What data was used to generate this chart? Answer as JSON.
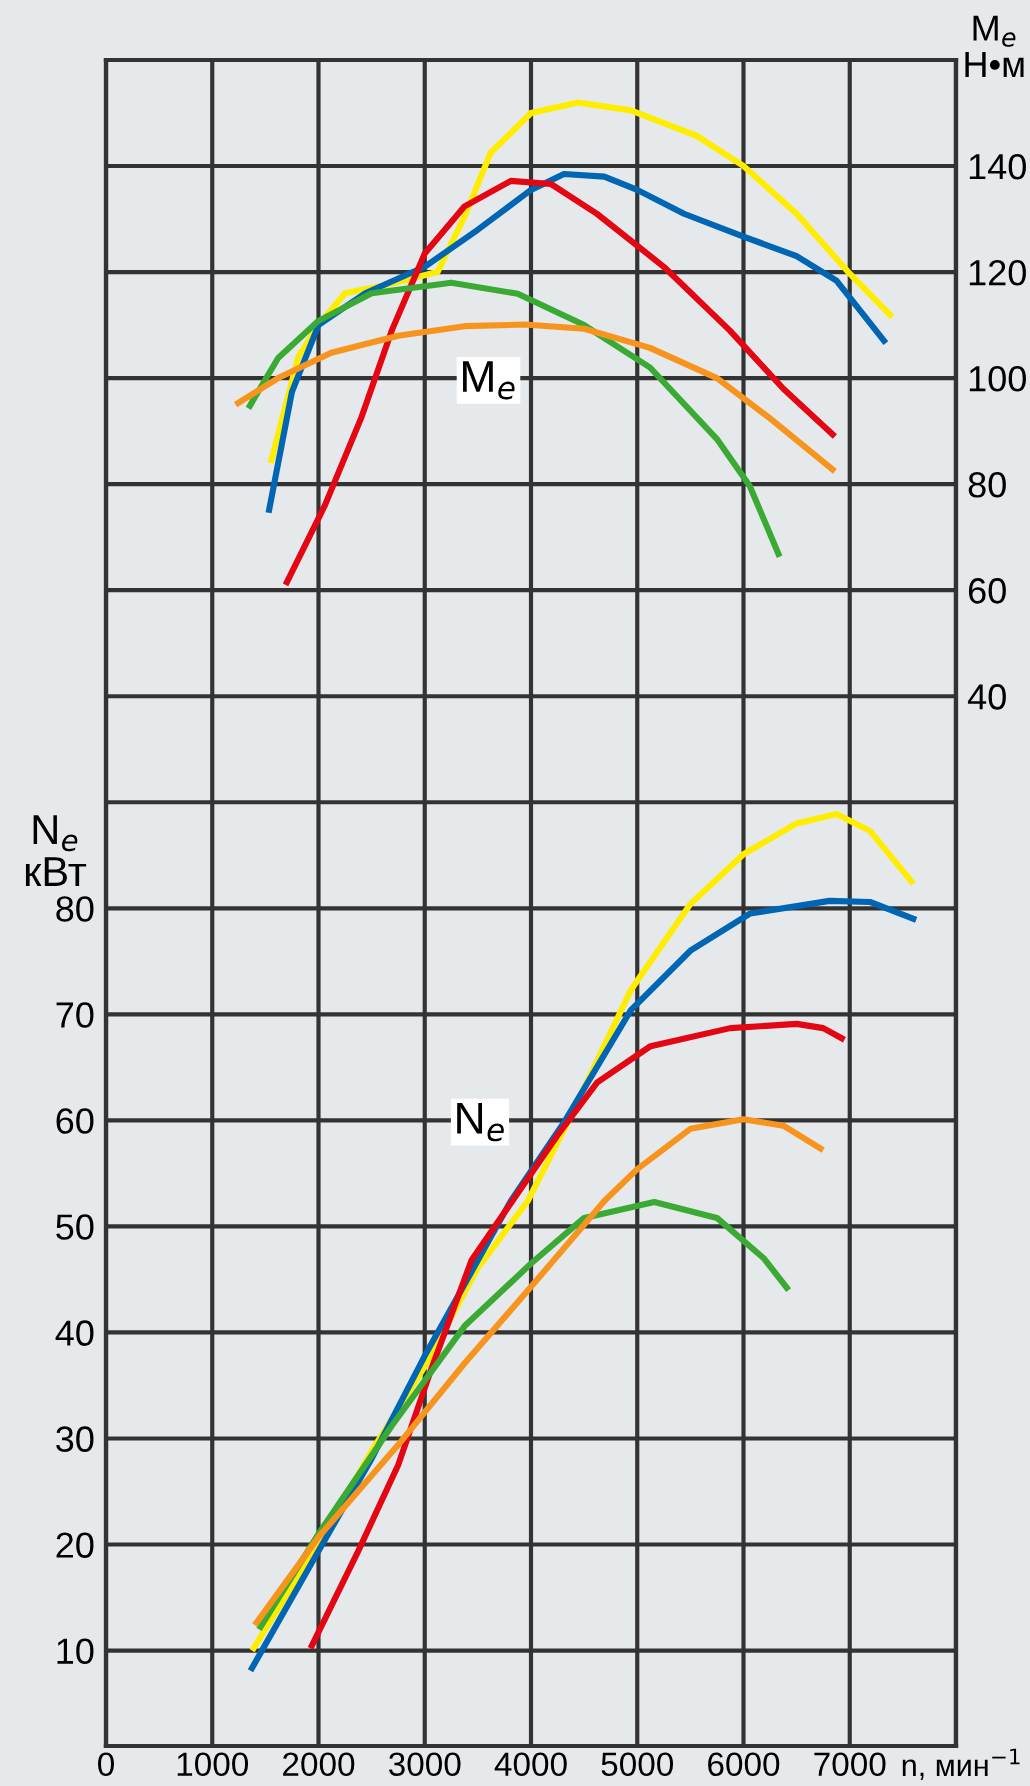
{
  "chart_data": {
    "type": "line",
    "xlabel": "n, мин$^{−1}$",
    "ylabel": "N$_{e}$\nкВт",
    "y2label": "M$_{e}$\nН•м",
    "xlim": [
      0,
      8000
    ],
    "xticks": [
      0,
      1000,
      2000,
      3000,
      4000,
      5000,
      6000,
      7000,
      {
        "value": 8000,
        "label": null
      }
    ],
    "ylim": [
      1,
      160
    ],
    "yticks": [
      10,
      20,
      30,
      40,
      50,
      60,
      70,
      80,
      {
        "value": 90,
        "label": null
      },
      {
        "value": 100,
        "label": null
      },
      {
        "value": 110,
        "label": null
      },
      {
        "value": 120,
        "label": null
      },
      {
        "value": 130,
        "label": null
      },
      {
        "value": 140,
        "label": null
      },
      {
        "value": 150,
        "label": null
      }
    ],
    "y2lim": [
      -158,
      160
    ],
    "y2ticks": [
      40,
      60,
      80,
      100,
      120,
      140
    ],
    "grid": true,
    "legend": false,
    "marker": "none",
    "line_style": "solid",
    "annotations": [
      "M$_{e}$",
      "N$_{e}$"
    ],
    "series": [
      {
        "axis": "y2",
        "color": "#ffed00",
        "x": [
          1550,
          1810,
          2000,
          2250,
          2620,
          3120,
          3375,
          3620,
          4000,
          4440,
          4940,
          5560,
          6000,
          6500,
          7000,
          7400
        ],
        "values": [
          84,
          104,
          110,
          116,
          117.5,
          120,
          130.5,
          142.5,
          150,
          152,
          150.5,
          145.7,
          140,
          131,
          119.7,
          111.5
        ]
      },
      {
        "axis": "y2",
        "color": "#0066b3",
        "x": [
          1530,
          1750,
          2000,
          2440,
          3000,
          3500,
          4000,
          4310,
          4690,
          5000,
          5440,
          6000,
          6500,
          6875,
          7340
        ],
        "values": [
          74.6,
          97.4,
          110,
          116,
          121,
          128,
          135.5,
          138.5,
          138,
          135.5,
          131,
          126.7,
          123,
          118.4,
          106.6
        ]
      },
      {
        "axis": "y2",
        "color": "#e30613",
        "x": [
          1690,
          2060,
          2400,
          2690,
          3000,
          3375,
          3810,
          4190,
          4620,
          5250,
          5870,
          6375,
          6860
        ],
        "values": [
          61,
          76,
          92.4,
          109,
          123.5,
          132.4,
          137.2,
          136.6,
          131,
          121,
          109,
          98,
          89
        ]
      },
      {
        "axis": "y2",
        "color": "#3aaa35",
        "x": [
          1340,
          1620,
          2000,
          2500,
          3250,
          3875,
          4500,
          5120,
          5750,
          6060,
          6340
        ],
        "values": [
          94.3,
          103.8,
          110.8,
          116,
          118,
          115.9,
          110,
          102,
          88.5,
          79.6,
          66.3
        ]
      },
      {
        "axis": "y2",
        "color": "#f7941d",
        "x": [
          1220,
          1620,
          2120,
          2750,
          3375,
          3940,
          4500,
          5120,
          5750,
          6250,
          6860
        ],
        "values": [
          95,
          100,
          104.8,
          108,
          109.8,
          110.1,
          109.3,
          105.7,
          100,
          92.4,
          82.4
        ]
      },
      {
        "axis": "y",
        "color": "#ffed00",
        "x": [
          1375,
          2000,
          2500,
          3000,
          3500,
          3970,
          4375,
          4940,
          5500,
          6000,
          6500,
          6875,
          7190,
          7600
        ],
        "values": [
          10,
          20.1,
          28.8,
          36.8,
          46.1,
          52.4,
          60.4,
          72.3,
          80.4,
          85.1,
          88,
          88.9,
          87.3,
          82.3
        ]
      },
      {
        "axis": "y",
        "color": "#0066b3",
        "x": [
          1360,
          2000,
          2500,
          3000,
          3500,
          3810,
          4310,
          4940,
          5500,
          6060,
          6810,
          7190,
          7625
        ],
        "values": [
          8.1,
          19.4,
          28.1,
          37.8,
          46.8,
          52.4,
          59.8,
          70.4,
          76,
          79.5,
          80.7,
          80.6,
          78.9
        ]
      },
      {
        "axis": "y",
        "color": "#e30613",
        "x": [
          1925,
          2375,
          2750,
          3060,
          3440,
          4250,
          4625,
          5125,
          5875,
          6500,
          6750,
          6950
        ],
        "values": [
          10.2,
          19.4,
          27.5,
          36.5,
          46.8,
          58.6,
          63.6,
          67,
          68.7,
          69.1,
          68.7,
          67.6
        ]
      },
      {
        "axis": "y",
        "color": "#3aaa35",
        "x": [
          1440,
          2000,
          2690,
          3375,
          4000,
          4500,
          5160,
          5750,
          6190,
          6425
        ],
        "values": [
          12,
          21,
          31.2,
          40.6,
          46.5,
          50.8,
          52.3,
          50.8,
          47,
          44
        ]
      },
      {
        "axis": "y",
        "color": "#f7941d",
        "x": [
          1400,
          2000,
          2750,
          3375,
          4000,
          4690,
          5000,
          5500,
          6000,
          6375,
          6750
        ],
        "values": [
          12.4,
          20.7,
          29.4,
          37.1,
          44.3,
          52.4,
          55.4,
          59.2,
          60.1,
          59.5,
          57.2
        ]
      }
    ]
  }
}
